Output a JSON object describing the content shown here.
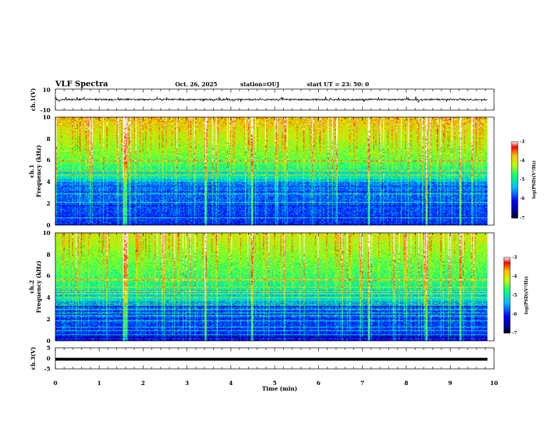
{
  "header": {
    "title": "VLF Spectra",
    "date": "Oct. 26, 2025",
    "station": "station=OUJ",
    "start": "start  UT  =   23: 50: 0"
  },
  "chart_data": [
    {
      "type": "line",
      "name": "ch1-waveform",
      "ylabel": "ch.1(V)",
      "ylim": [
        -10,
        10
      ],
      "yticks": [
        "10",
        "-10"
      ],
      "baseline": 0,
      "noise_amplitude": 0.8
    },
    {
      "type": "heatmap",
      "name": "ch1-spectrogram",
      "ylabel_top": "ch.1",
      "ylabel": "Frequency  (kHz)",
      "ylim": [
        0,
        10
      ],
      "yticks": [
        "0",
        "2",
        "4",
        "6",
        "8",
        "10"
      ],
      "colorbar": {
        "label": "log(PSD)(V²/Hz)",
        "range": [
          -7,
          -3
        ],
        "ticks": [
          "-3",
          "-4",
          "-5",
          "-6",
          "-7"
        ]
      }
    },
    {
      "type": "heatmap",
      "name": "ch2-spectrogram",
      "ylabel_top": "ch.2",
      "ylabel": "Frequency  (kHz)",
      "ylim": [
        0,
        10
      ],
      "yticks": [
        "0",
        "2",
        "4",
        "6",
        "8",
        "10"
      ],
      "colorbar": {
        "label": "log(PSD)(V²/Hz)",
        "range": [
          -7,
          -3
        ],
        "ticks": [
          "-3",
          "-4",
          "-5",
          "-6",
          "-7"
        ]
      }
    },
    {
      "type": "line",
      "name": "ch3-waveform",
      "ylabel": "ch.3(V)",
      "ylim": [
        -5,
        5
      ],
      "yticks": [
        "5",
        "0",
        "-5"
      ],
      "value": -0.4
    }
  ],
  "xaxis": {
    "label": "Time  (min)",
    "xlim": [
      0,
      10
    ],
    "data_end": 9.85,
    "ticks": [
      "0",
      "1",
      "2",
      "3",
      "4",
      "5",
      "6",
      "7",
      "8",
      "9",
      "10"
    ]
  }
}
